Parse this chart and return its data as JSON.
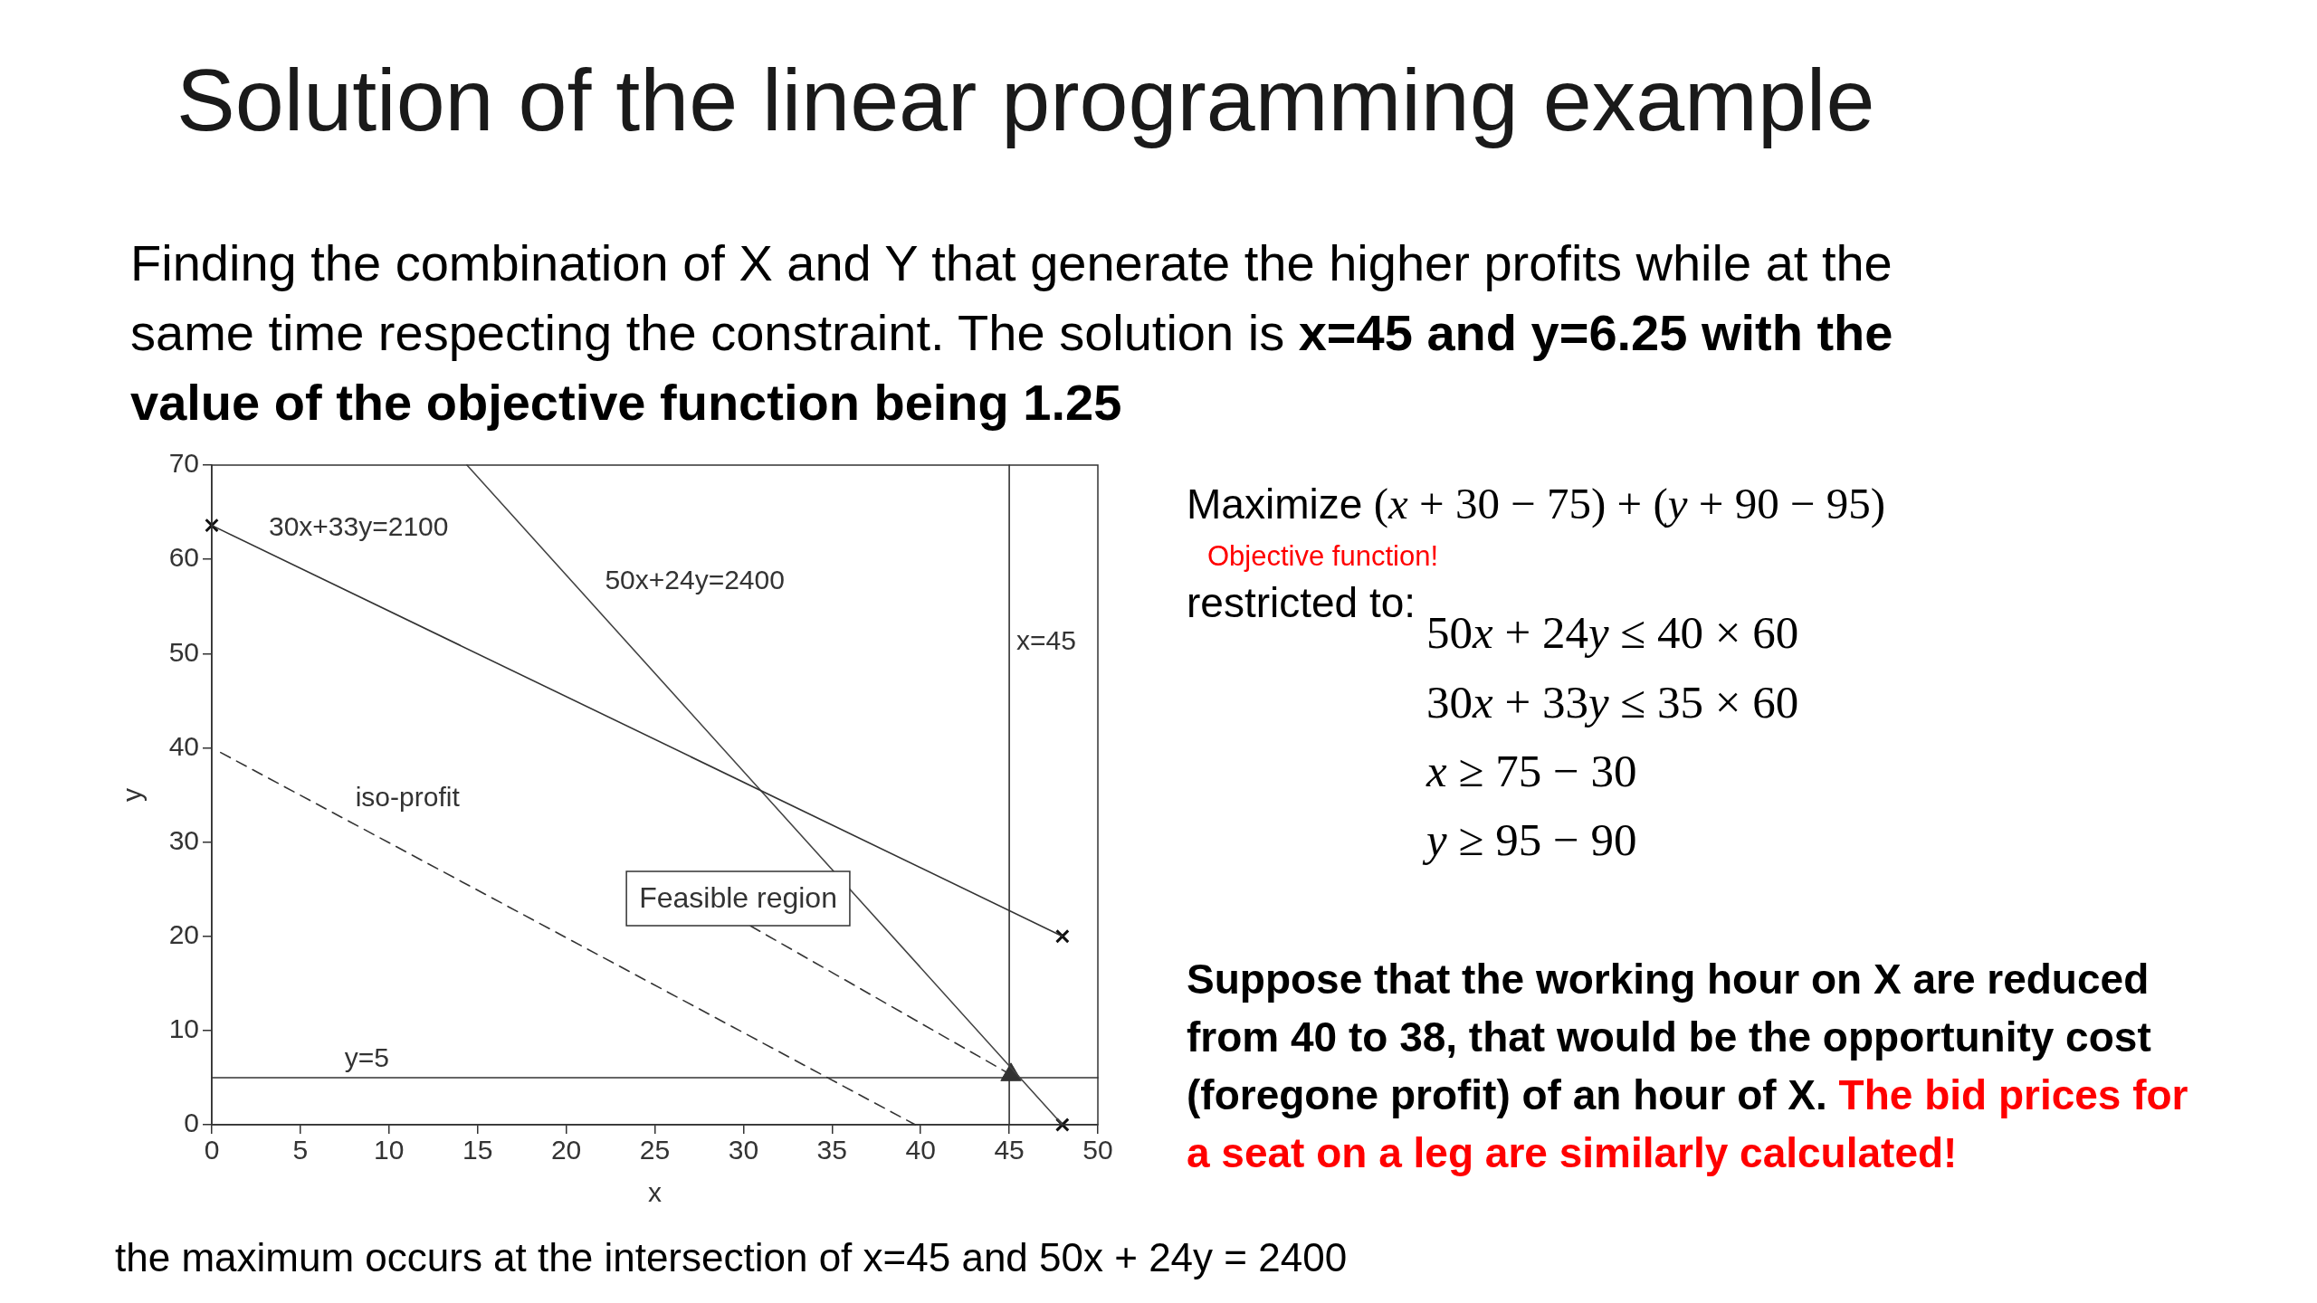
{
  "chart_data": {
    "type": "line",
    "title": "Solution of the linear programming example",
    "subtitle": "Finding the combination of X and Y that generate the higher profits while at the same time respecting the constraint. The solution is",
    "xlabel": "x",
    "ylabel": "y",
    "xlim": [
      0,
      50
    ],
    "xticks": [
      0,
      5,
      10,
      15,
      20,
      25,
      30,
      35,
      40,
      45,
      50
    ],
    "ylim": [
      0,
      70
    ],
    "yticks": [
      0,
      10,
      20,
      30,
      40,
      50,
      60,
      70
    ],
    "series": [
      {
        "name": "30x+33y=2100",
        "color": "#333333",
        "x": [
          0,
          48
        ],
        "values": [
          63.6,
          20
        ]
      },
      {
        "name": "50x+24y=2400",
        "color": "#444444",
        "x": [
          14.4,
          48
        ],
        "values": [
          70,
          0
        ]
      },
      {
        "name": "x=45",
        "color": "#333333",
        "x": [
          45,
          45
        ],
        "values": [
          0,
          70
        ]
      },
      {
        "name": "y=5",
        "color": "#333333",
        "x": [
          0,
          50
        ],
        "values": [
          5,
          5
        ]
      },
      {
        "name": "iso-profit",
        "color": "#333333",
        "line_style": "dashed",
        "x": [
          0.5,
          39.7
        ],
        "values": [
          39.5,
          0
        ]
      },
      {
        "color": "#333333",
        "line_style": "dashed",
        "marker": "triangle",
        "x": [
          30.4,
          45.1
        ],
        "values": [
          21.1,
          5.3
        ]
      },
      {
        "type": "scatter",
        "color": "#111111",
        "marker": "cross",
        "x": [
          0,
          48,
          48
        ],
        "values": [
          63.6,
          20,
          0
        ]
      }
    ],
    "annotations": [
      "x=45 and y=6.25 with the value of the objective function being 1.25",
      "Feasible region",
      "Maximize (x + 30 − 75) + (y + 90 − 95)",
      "Objective function!",
      "restricted to:",
      "50x + 24y ≤ 40 × 60",
      "30x + 33y ≤ 35 × 60",
      "x ≥ 75 − 30",
      "y ≥ 95 − 90",
      "Suppose that the working hour on X are reduced from 40 to 38, that would be the opportunity cost (foregone profit) of an hour of X.",
      "The bid prices for a seat on a leg are similarly calculated!",
      "the maximum occurs at the intersection of x=45 and 50x + 24y = 2400"
    ]
  }
}
